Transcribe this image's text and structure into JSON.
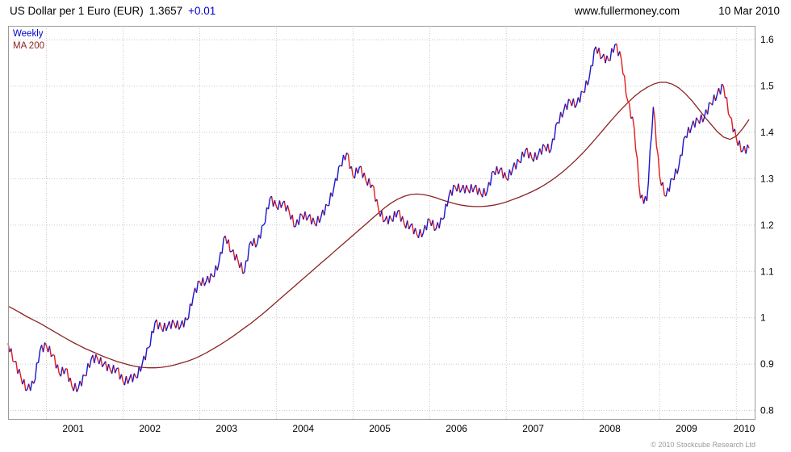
{
  "header": {
    "instrument": "US Dollar per 1 Euro (EUR)",
    "last_price": "1.3657",
    "change": "+0.01",
    "website": "www.fullermoney.com",
    "date": "10 Mar 2010"
  },
  "legend": {
    "series1": "Weekly",
    "series2": "MA 200"
  },
  "footer": {
    "copyright": "© 2010 Stockcube Research Ltd"
  },
  "colors": {
    "up": "#1616cf",
    "down": "#e31a1a",
    "ma": "#8b2323",
    "grid": "#c9c9c9",
    "border": "#9a9a9a",
    "change_text": "#0000cd",
    "legend_weekly": "#0000cd",
    "legend_ma": "#8b2323",
    "copyright": "#9a9a9a"
  },
  "chart_data": {
    "type": "line",
    "title": "US Dollar per 1 Euro (EUR) — Weekly with 200-period moving average",
    "xlabel": "",
    "ylabel": "USD per EUR",
    "x_axis": {
      "range": [
        2000.5,
        2010.25
      ],
      "ticks": [
        2001,
        2002,
        2003,
        2004,
        2005,
        2006,
        2007,
        2008,
        2009,
        2010
      ]
    },
    "y_axis": {
      "range": [
        0.78,
        1.63
      ],
      "ticks": [
        0.8,
        0.9,
        1,
        1.1,
        1.2,
        1.3,
        1.4,
        1.5,
        1.6
      ],
      "side": "right"
    },
    "grid": true,
    "legend_position": "top-left",
    "series": [
      {
        "name": "Weekly",
        "style": "weekly-bars",
        "points": [
          [
            2000.5,
            0.945
          ],
          [
            2000.583,
            0.905
          ],
          [
            2000.667,
            0.872
          ],
          [
            2000.75,
            0.845
          ],
          [
            2000.833,
            0.858
          ],
          [
            2000.917,
            0.93
          ],
          [
            2001.0,
            0.94
          ],
          [
            2001.083,
            0.92
          ],
          [
            2001.167,
            0.88
          ],
          [
            2001.25,
            0.89
          ],
          [
            2001.333,
            0.852
          ],
          [
            2001.417,
            0.848
          ],
          [
            2001.5,
            0.875
          ],
          [
            2001.583,
            0.91
          ],
          [
            2001.667,
            0.912
          ],
          [
            2001.75,
            0.9
          ],
          [
            2001.833,
            0.888
          ],
          [
            2001.917,
            0.89
          ],
          [
            2002.0,
            0.862
          ],
          [
            2002.083,
            0.868
          ],
          [
            2002.167,
            0.872
          ],
          [
            2002.25,
            0.9
          ],
          [
            2002.333,
            0.935
          ],
          [
            2002.417,
            0.99
          ],
          [
            2002.5,
            0.978
          ],
          [
            2002.583,
            0.982
          ],
          [
            2002.667,
            0.988
          ],
          [
            2002.75,
            0.982
          ],
          [
            2002.833,
            0.995
          ],
          [
            2002.917,
            1.048
          ],
          [
            2003.0,
            1.078
          ],
          [
            2003.083,
            1.078
          ],
          [
            2003.167,
            1.09
          ],
          [
            2003.25,
            1.118
          ],
          [
            2003.333,
            1.177
          ],
          [
            2003.417,
            1.143
          ],
          [
            2003.5,
            1.123
          ],
          [
            2003.583,
            1.098
          ],
          [
            2003.667,
            1.165
          ],
          [
            2003.75,
            1.16
          ],
          [
            2003.833,
            1.2
          ],
          [
            2003.917,
            1.258
          ],
          [
            2004.0,
            1.24
          ],
          [
            2004.083,
            1.248
          ],
          [
            2004.167,
            1.229
          ],
          [
            2004.25,
            1.197
          ],
          [
            2004.333,
            1.222
          ],
          [
            2004.417,
            1.218
          ],
          [
            2004.5,
            1.203
          ],
          [
            2004.583,
            1.218
          ],
          [
            2004.667,
            1.242
          ],
          [
            2004.75,
            1.28
          ],
          [
            2004.833,
            1.329
          ],
          [
            2004.917,
            1.356
          ],
          [
            2005.0,
            1.305
          ],
          [
            2005.083,
            1.325
          ],
          [
            2005.167,
            1.297
          ],
          [
            2005.25,
            1.287
          ],
          [
            2005.333,
            1.233
          ],
          [
            2005.417,
            1.21
          ],
          [
            2005.5,
            1.212
          ],
          [
            2005.583,
            1.23
          ],
          [
            2005.667,
            1.203
          ],
          [
            2005.75,
            1.199
          ],
          [
            2005.833,
            1.18
          ],
          [
            2005.917,
            1.184
          ],
          [
            2006.0,
            1.212
          ],
          [
            2006.083,
            1.192
          ],
          [
            2006.167,
            1.212
          ],
          [
            2006.25,
            1.262
          ],
          [
            2006.333,
            1.283
          ],
          [
            2006.417,
            1.278
          ],
          [
            2006.5,
            1.277
          ],
          [
            2006.583,
            1.281
          ],
          [
            2006.667,
            1.268
          ],
          [
            2006.75,
            1.273
          ],
          [
            2006.833,
            1.316
          ],
          [
            2006.917,
            1.32
          ],
          [
            2007.0,
            1.3
          ],
          [
            2007.083,
            1.322
          ],
          [
            2007.167,
            1.337
          ],
          [
            2007.25,
            1.362
          ],
          [
            2007.333,
            1.344
          ],
          [
            2007.417,
            1.352
          ],
          [
            2007.5,
            1.37
          ],
          [
            2007.583,
            1.363
          ],
          [
            2007.667,
            1.422
          ],
          [
            2007.75,
            1.448
          ],
          [
            2007.833,
            1.468
          ],
          [
            2007.917,
            1.46
          ],
          [
            2008.0,
            1.487
          ],
          [
            2008.083,
            1.519
          ],
          [
            2008.167,
            1.585
          ],
          [
            2008.25,
            1.562
          ],
          [
            2008.333,
            1.555
          ],
          [
            2008.417,
            1.59
          ],
          [
            2008.5,
            1.558
          ],
          [
            2008.583,
            1.468
          ],
          [
            2008.667,
            1.41
          ],
          [
            2008.75,
            1.258
          ],
          [
            2008.833,
            1.252
          ],
          [
            2008.917,
            1.455
          ],
          [
            2009.0,
            1.305
          ],
          [
            2009.083,
            1.262
          ],
          [
            2009.167,
            1.3
          ],
          [
            2009.25,
            1.326
          ],
          [
            2009.333,
            1.392
          ],
          [
            2009.417,
            1.413
          ],
          [
            2009.5,
            1.426
          ],
          [
            2009.583,
            1.433
          ],
          [
            2009.667,
            1.463
          ],
          [
            2009.75,
            1.482
          ],
          [
            2009.833,
            1.5
          ],
          [
            2009.917,
            1.433
          ],
          [
            2010.0,
            1.387
          ],
          [
            2010.083,
            1.36
          ],
          [
            2010.167,
            1.366
          ]
        ]
      },
      {
        "name": "MA 200",
        "style": "line",
        "points": [
          [
            2000.5,
            1.025
          ],
          [
            2000.583,
            1.018
          ],
          [
            2000.667,
            1.01
          ],
          [
            2000.75,
            1.002
          ],
          [
            2000.833,
            0.995
          ],
          [
            2000.917,
            0.988
          ],
          [
            2001.0,
            0.98
          ],
          [
            2001.083,
            0.972
          ],
          [
            2001.167,
            0.964
          ],
          [
            2001.25,
            0.956
          ],
          [
            2001.333,
            0.948
          ],
          [
            2001.417,
            0.941
          ],
          [
            2001.5,
            0.934
          ],
          [
            2001.583,
            0.928
          ],
          [
            2001.667,
            0.922
          ],
          [
            2001.75,
            0.916
          ],
          [
            2001.833,
            0.911
          ],
          [
            2001.917,
            0.906
          ],
          [
            2002.0,
            0.902
          ],
          [
            2002.083,
            0.898
          ],
          [
            2002.167,
            0.895
          ],
          [
            2002.25,
            0.893
          ],
          [
            2002.333,
            0.892
          ],
          [
            2002.417,
            0.892
          ],
          [
            2002.5,
            0.893
          ],
          [
            2002.583,
            0.895
          ],
          [
            2002.667,
            0.898
          ],
          [
            2002.75,
            0.902
          ],
          [
            2002.833,
            0.906
          ],
          [
            2002.917,
            0.911
          ],
          [
            2003.0,
            0.917
          ],
          [
            2003.083,
            0.924
          ],
          [
            2003.167,
            0.932
          ],
          [
            2003.25,
            0.94
          ],
          [
            2003.333,
            0.949
          ],
          [
            2003.417,
            0.958
          ],
          [
            2003.5,
            0.968
          ],
          [
            2003.583,
            0.978
          ],
          [
            2003.667,
            0.988
          ],
          [
            2003.75,
            0.999
          ],
          [
            2003.833,
            1.01
          ],
          [
            2003.917,
            1.022
          ],
          [
            2004.0,
            1.034
          ],
          [
            2004.083,
            1.046
          ],
          [
            2004.167,
            1.058
          ],
          [
            2004.25,
            1.07
          ],
          [
            2004.333,
            1.082
          ],
          [
            2004.417,
            1.094
          ],
          [
            2004.5,
            1.106
          ],
          [
            2004.583,
            1.118
          ],
          [
            2004.667,
            1.13
          ],
          [
            2004.75,
            1.142
          ],
          [
            2004.833,
            1.154
          ],
          [
            2004.917,
            1.166
          ],
          [
            2005.0,
            1.178
          ],
          [
            2005.083,
            1.19
          ],
          [
            2005.167,
            1.202
          ],
          [
            2005.25,
            1.214
          ],
          [
            2005.333,
            1.226
          ],
          [
            2005.417,
            1.238
          ],
          [
            2005.5,
            1.248
          ],
          [
            2005.583,
            1.256
          ],
          [
            2005.667,
            1.262
          ],
          [
            2005.75,
            1.266
          ],
          [
            2005.833,
            1.267
          ],
          [
            2005.917,
            1.266
          ],
          [
            2006.0,
            1.263
          ],
          [
            2006.083,
            1.259
          ],
          [
            2006.167,
            1.254
          ],
          [
            2006.25,
            1.25
          ],
          [
            2006.333,
            1.246
          ],
          [
            2006.417,
            1.243
          ],
          [
            2006.5,
            1.241
          ],
          [
            2006.583,
            1.24
          ],
          [
            2006.667,
            1.24
          ],
          [
            2006.75,
            1.241
          ],
          [
            2006.833,
            1.243
          ],
          [
            2006.917,
            1.246
          ],
          [
            2007.0,
            1.25
          ],
          [
            2007.083,
            1.255
          ],
          [
            2007.167,
            1.26
          ],
          [
            2007.25,
            1.266
          ],
          [
            2007.333,
            1.272
          ],
          [
            2007.417,
            1.279
          ],
          [
            2007.5,
            1.287
          ],
          [
            2007.583,
            1.296
          ],
          [
            2007.667,
            1.306
          ],
          [
            2007.75,
            1.317
          ],
          [
            2007.833,
            1.329
          ],
          [
            2007.917,
            1.342
          ],
          [
            2008.0,
            1.356
          ],
          [
            2008.083,
            1.371
          ],
          [
            2008.167,
            1.387
          ],
          [
            2008.25,
            1.403
          ],
          [
            2008.333,
            1.419
          ],
          [
            2008.417,
            1.435
          ],
          [
            2008.5,
            1.45
          ],
          [
            2008.583,
            1.464
          ],
          [
            2008.667,
            1.477
          ],
          [
            2008.75,
            1.488
          ],
          [
            2008.833,
            1.497
          ],
          [
            2008.917,
            1.504
          ],
          [
            2009.0,
            1.508
          ],
          [
            2009.083,
            1.508
          ],
          [
            2009.167,
            1.504
          ],
          [
            2009.25,
            1.496
          ],
          [
            2009.333,
            1.484
          ],
          [
            2009.417,
            1.469
          ],
          [
            2009.5,
            1.452
          ],
          [
            2009.583,
            1.434
          ],
          [
            2009.667,
            1.418
          ],
          [
            2009.75,
            1.402
          ],
          [
            2009.833,
            1.39
          ],
          [
            2009.917,
            1.385
          ],
          [
            2010.0,
            1.392
          ],
          [
            2010.083,
            1.408
          ],
          [
            2010.167,
            1.428
          ]
        ]
      }
    ]
  }
}
